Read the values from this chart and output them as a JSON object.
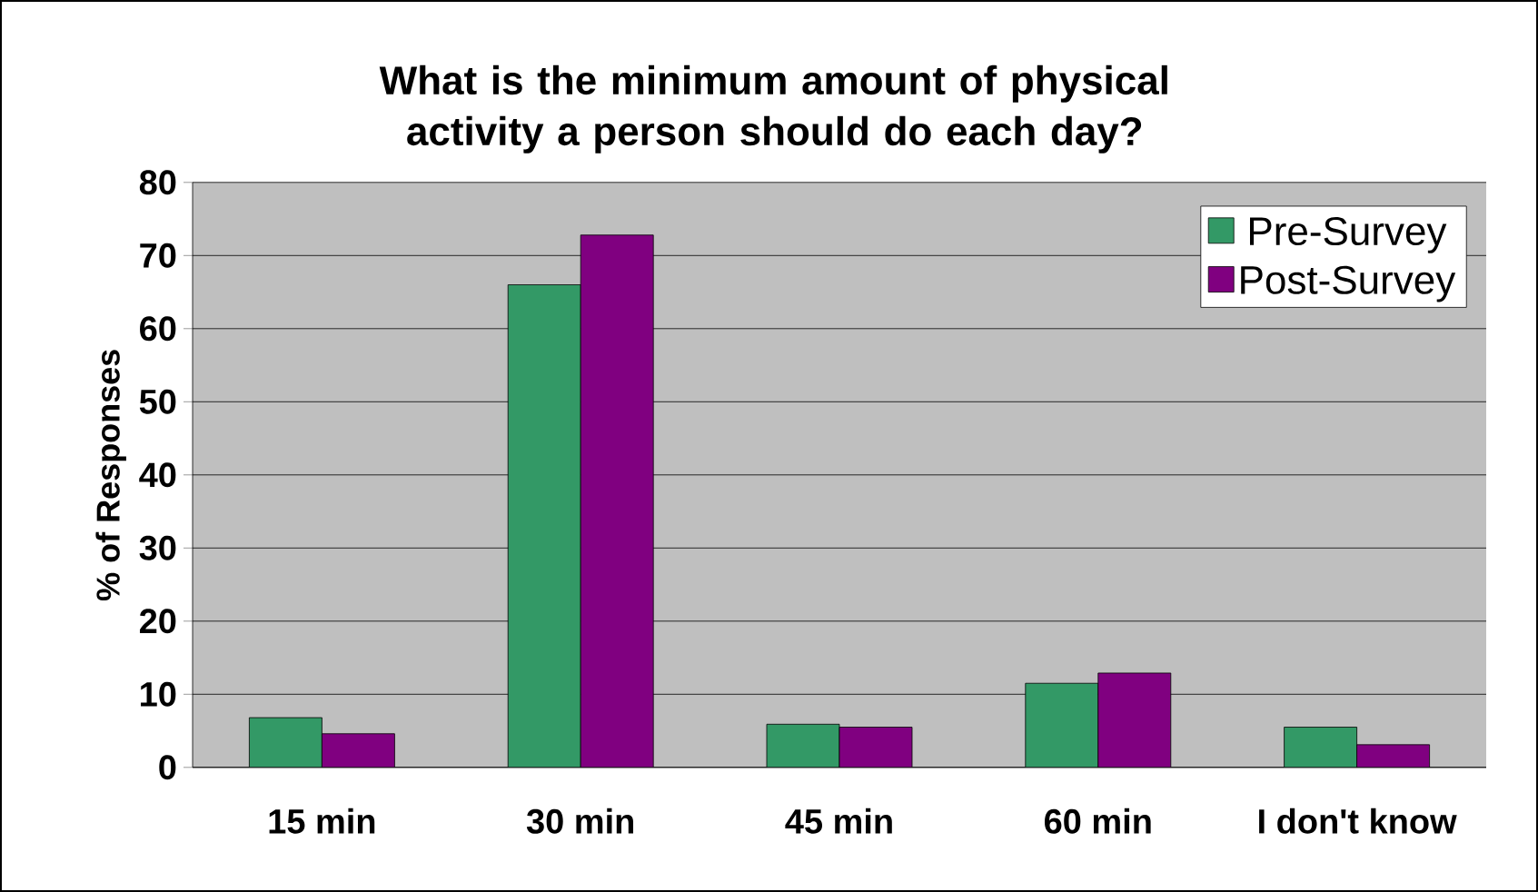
{
  "chart_data": {
    "type": "bar",
    "title": "What is the minimum amount of physical activity a person should do each day?",
    "ylabel": "% of Responses",
    "categories": [
      "15 min",
      "30 min",
      "45 min",
      "60 min",
      "I don't know"
    ],
    "series": [
      {
        "name": "Pre-Survey",
        "color": "#339966",
        "values": [
          6.8,
          66.0,
          5.9,
          11.5,
          5.5
        ]
      },
      {
        "name": "Post-Survey",
        "color": "#800080",
        "values": [
          4.6,
          72.8,
          5.5,
          12.9,
          3.1
        ]
      }
    ],
    "ylim": [
      0,
      80
    ],
    "yticks": [
      0,
      10,
      20,
      30,
      40,
      50,
      60,
      70,
      80
    ],
    "grid": "y",
    "legend": "top right"
  }
}
